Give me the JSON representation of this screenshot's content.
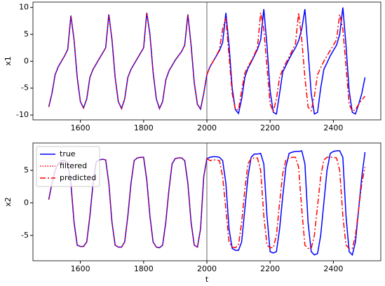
{
  "chart_data": [
    {
      "type": "line",
      "ylabel": "x1",
      "x": [
        1500,
        1510,
        1520,
        1530,
        1540,
        1550,
        1560,
        1570,
        1580,
        1590,
        1600,
        1610,
        1620,
        1630,
        1640,
        1650,
        1660,
        1670,
        1680,
        1690,
        1700,
        1710,
        1720,
        1730,
        1740,
        1750,
        1760,
        1770,
        1780,
        1790,
        1800,
        1810,
        1820,
        1830,
        1840,
        1850,
        1860,
        1870,
        1880,
        1890,
        1900,
        1910,
        1920,
        1930,
        1940,
        1950,
        1960,
        1970,
        1980,
        1990,
        2000,
        2010,
        2020,
        2030,
        2040,
        2050,
        2060,
        2070,
        2080,
        2090,
        2100,
        2110,
        2120,
        2130,
        2140,
        2150,
        2160,
        2170,
        2180,
        2190,
        2200,
        2210,
        2220,
        2230,
        2240,
        2250,
        2260,
        2270,
        2280,
        2290,
        2300,
        2310,
        2320,
        2330,
        2340,
        2350,
        2360,
        2370,
        2380,
        2390,
        2400,
        2410,
        2420,
        2430,
        2440,
        2450,
        2460,
        2470,
        2480,
        2490,
        2500
      ],
      "series": [
        {
          "name": "true",
          "color": "#0000ff",
          "linestyle": "solid",
          "values": [
            -8.5,
            -6,
            -2.5,
            -1,
            0,
            1,
            2.2,
            8.5,
            4,
            -3,
            -7.5,
            -8.7,
            -7,
            -3,
            -1.5,
            -0.5,
            0.5,
            1.5,
            2.5,
            8.7,
            4,
            -3,
            -7.5,
            -8.8,
            -7,
            -3,
            -1.5,
            -0.5,
            0.5,
            1.5,
            2.5,
            9,
            5,
            -2,
            -7,
            -8.8,
            -7.5,
            -3.5,
            -1.8,
            -0.8,
            0.2,
            1,
            1.8,
            3,
            8.7,
            3,
            -4,
            -8,
            -8.9,
            -6,
            -2.5,
            -1,
            0,
            1,
            2,
            3.5,
            9,
            3,
            -5,
            -9,
            -9.7,
            -7,
            -3,
            -1.3,
            -0.2,
            1,
            2.2,
            4,
            9.7,
            3,
            -5.5,
            -9.5,
            -9.8,
            -6,
            -2,
            -0.8,
            0.4,
            1.5,
            2.5,
            3.8,
            6,
            9.7,
            2,
            -6,
            -9.8,
            -9.5,
            -5,
            -1.5,
            -0.3,
            1,
            2,
            3,
            5,
            10,
            3,
            -5.5,
            -9.5,
            -9.8,
            -8,
            -6,
            -3
          ]
        },
        {
          "name": "filtered",
          "color": "#ff0000",
          "linestyle": "dotted",
          "values": [
            -8.5,
            -6,
            -2.5,
            -1,
            0,
            1,
            2.2,
            8.5,
            4,
            -3,
            -7.5,
            -8.7,
            -7,
            -3,
            -1.5,
            -0.5,
            0.5,
            1.5,
            2.5,
            8.7,
            4,
            -3,
            -7.5,
            -8.8,
            -7,
            -3,
            -1.5,
            -0.5,
            0.5,
            1.5,
            2.5,
            9,
            5,
            -2,
            -7,
            -8.8,
            -7.5,
            -3.5,
            -1.8,
            -0.8,
            0.2,
            1,
            1.8,
            3,
            8.7,
            3,
            -4,
            -8,
            -8.9,
            -6,
            -2.5,
            null,
            null,
            null,
            null,
            null,
            null,
            null,
            null,
            null,
            null,
            null,
            null,
            null,
            null,
            null,
            null,
            null,
            null,
            null,
            null,
            null,
            null,
            null,
            null,
            null,
            null,
            null,
            null,
            null,
            null,
            null,
            null,
            null,
            null,
            null,
            null,
            null,
            null,
            null,
            null,
            null,
            null,
            null,
            null,
            null,
            null,
            null,
            null,
            null,
            null
          ]
        },
        {
          "name": "predicted",
          "color": "#ff0000",
          "linestyle": "dashdot",
          "values": [
            null,
            null,
            null,
            null,
            null,
            null,
            null,
            null,
            null,
            null,
            null,
            null,
            null,
            null,
            null,
            null,
            null,
            null,
            null,
            null,
            null,
            null,
            null,
            null,
            null,
            null,
            null,
            null,
            null,
            null,
            null,
            null,
            null,
            null,
            null,
            null,
            null,
            null,
            null,
            null,
            null,
            null,
            null,
            null,
            null,
            null,
            null,
            null,
            null,
            null,
            -2.5,
            -1,
            0,
            1,
            2.2,
            6,
            8,
            1,
            -6,
            -9,
            -9,
            -5.5,
            -2.2,
            -1,
            0,
            1.2,
            2.5,
            9,
            6,
            -1,
            -8,
            -9.3,
            -7,
            -3,
            -1.5,
            -0.3,
            0.8,
            2,
            3.2,
            9,
            4,
            -3,
            -8.5,
            -9.2,
            -6.5,
            -2.5,
            -1.2,
            0,
            1,
            2,
            3,
            4,
            8.7,
            6,
            -1,
            -8,
            -9.3,
            -9,
            -8,
            -7.2,
            -6.5
          ]
        }
      ],
      "xlim": [
        1450,
        2550
      ],
      "ylim": [
        -10.9,
        11
      ],
      "xticks": [
        1600,
        1800,
        2000,
        2200,
        2400
      ],
      "yticks": [
        -10,
        -5,
        0,
        5,
        10
      ],
      "vline": 2000,
      "vline_color": "#808080"
    },
    {
      "type": "line",
      "ylabel": "x2",
      "xlabel": "t",
      "x": [
        1500,
        1510,
        1520,
        1530,
        1540,
        1550,
        1560,
        1570,
        1580,
        1590,
        1600,
        1610,
        1620,
        1630,
        1640,
        1650,
        1660,
        1670,
        1680,
        1690,
        1700,
        1710,
        1720,
        1730,
        1740,
        1750,
        1760,
        1770,
        1780,
        1790,
        1800,
        1810,
        1820,
        1830,
        1840,
        1850,
        1860,
        1870,
        1880,
        1890,
        1900,
        1910,
        1920,
        1930,
        1940,
        1950,
        1960,
        1970,
        1980,
        1990,
        2000,
        2010,
        2020,
        2030,
        2040,
        2050,
        2060,
        2070,
        2080,
        2090,
        2100,
        2110,
        2120,
        2130,
        2140,
        2150,
        2160,
        2170,
        2180,
        2190,
        2200,
        2210,
        2220,
        2230,
        2240,
        2250,
        2260,
        2270,
        2280,
        2290,
        2300,
        2310,
        2320,
        2330,
        2340,
        2350,
        2360,
        2370,
        2380,
        2390,
        2400,
        2410,
        2420,
        2430,
        2440,
        2450,
        2460,
        2470,
        2480,
        2490,
        2500
      ],
      "series": [
        {
          "name": "true",
          "color": "#0000ff",
          "linestyle": "solid",
          "values": [
            0.5,
            3,
            5,
            6,
            6.5,
            6.5,
            6.2,
            3,
            -3,
            -6.5,
            -6.7,
            -6.7,
            -6,
            -2,
            3,
            6.3,
            6.6,
            6.7,
            6.6,
            3,
            -3,
            -6.5,
            -6.8,
            -6.8,
            -6,
            -2,
            3,
            6.5,
            6.9,
            7,
            7,
            3.5,
            -2,
            -6,
            -6.8,
            -6.9,
            -6.5,
            -3,
            2,
            6,
            6.8,
            6.9,
            6.9,
            6.5,
            3,
            -3,
            -6.5,
            -6.8,
            -4,
            4,
            6.8,
            7,
            7.1,
            7.1,
            7,
            6.5,
            3,
            -4,
            -7,
            -7.3,
            -7.3,
            -6,
            -1,
            4,
            7,
            7.5,
            7.5,
            7.6,
            6,
            -2,
            -7.5,
            -7.7,
            -7.5,
            -4,
            1,
            5.5,
            7.6,
            7.8,
            7.9,
            7.9,
            8,
            6,
            -3,
            -7.5,
            -8,
            -7.8,
            -5,
            0,
            5,
            7.6,
            7.9,
            8,
            8,
            7,
            -2,
            -7.5,
            -8,
            -6,
            -1,
            4,
            7.8
          ]
        },
        {
          "name": "filtered",
          "color": "#ff0000",
          "linestyle": "dotted",
          "values": [
            0.5,
            3,
            5,
            6,
            6.5,
            6.5,
            6.2,
            3,
            -3,
            -6.5,
            -6.7,
            -6.7,
            -6,
            -2,
            3,
            6.3,
            6.6,
            6.7,
            6.6,
            3,
            -3,
            -6.5,
            -6.8,
            -6.8,
            -6,
            -2,
            3,
            6.5,
            6.9,
            7,
            7,
            3.5,
            -2,
            -6,
            -6.8,
            -6.9,
            -6.5,
            -3,
            2,
            6,
            6.8,
            6.9,
            6.9,
            6.5,
            3,
            -3,
            -6.5,
            -6.8,
            -4,
            4,
            6.8,
            null,
            null,
            null,
            null,
            null,
            null,
            null,
            null,
            null,
            null,
            null,
            null,
            null,
            null,
            null,
            null,
            null,
            null,
            null,
            null,
            null,
            null,
            null,
            null,
            null,
            null,
            null,
            null,
            null,
            null,
            null,
            null,
            null,
            null,
            null,
            null,
            null,
            null,
            null,
            null,
            null,
            null,
            null,
            null,
            null,
            null,
            null,
            null,
            null,
            null
          ]
        },
        {
          "name": "predicted",
          "color": "#ff0000",
          "linestyle": "dashdot",
          "values": [
            null,
            null,
            null,
            null,
            null,
            null,
            null,
            null,
            null,
            null,
            null,
            null,
            null,
            null,
            null,
            null,
            null,
            null,
            null,
            null,
            null,
            null,
            null,
            null,
            null,
            null,
            null,
            null,
            null,
            null,
            null,
            null,
            null,
            null,
            null,
            null,
            null,
            null,
            null,
            null,
            null,
            null,
            null,
            null,
            null,
            null,
            null,
            null,
            null,
            null,
            6.8,
            6.5,
            6.6,
            6.6,
            6.5,
            4,
            -1,
            -6,
            -6.8,
            -6.9,
            -6.5,
            -3,
            2,
            6,
            6.8,
            6.9,
            6.9,
            5,
            -2,
            -6.5,
            -6.9,
            -6.9,
            -5,
            0,
            4.5,
            6.6,
            6.9,
            7,
            7,
            5.5,
            -1,
            -6.5,
            -7,
            -7,
            -5,
            -0.5,
            4,
            6.6,
            7,
            7,
            7,
            6.9,
            5,
            -2,
            -6.5,
            -7,
            -7,
            -5,
            -1,
            3,
            5.5
          ]
        }
      ],
      "xlim": [
        1450,
        2550
      ],
      "ylim": [
        -8.9,
        9.2
      ],
      "xticks": [
        1600,
        1800,
        2000,
        2200,
        2400
      ],
      "yticks": [
        -5,
        0,
        5
      ],
      "vline": 2000,
      "vline_color": "#808080",
      "legend": "upper left"
    }
  ]
}
